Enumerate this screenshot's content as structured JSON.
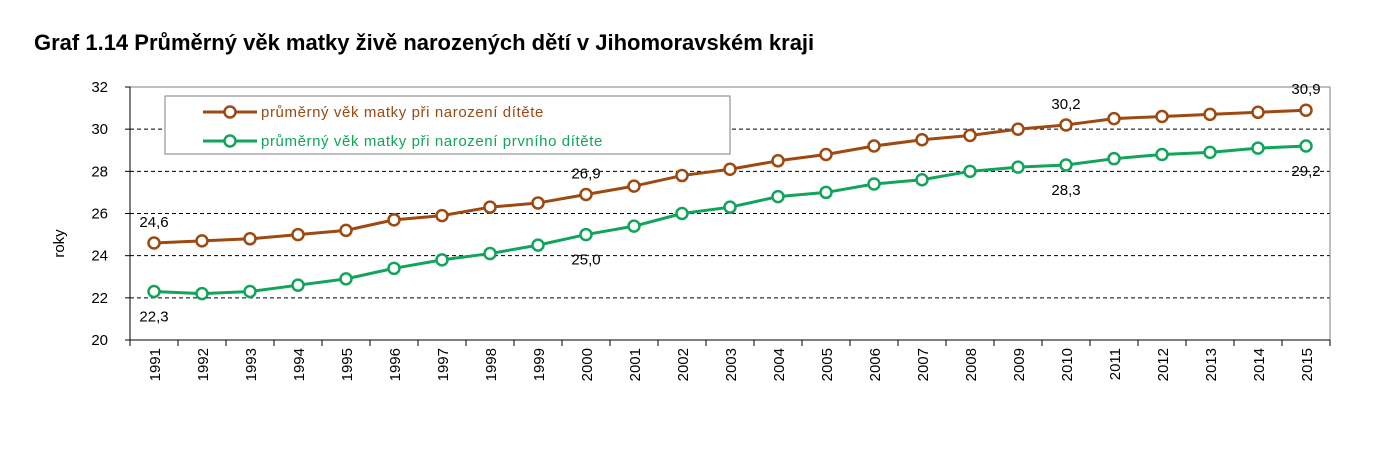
{
  "chart_data": {
    "type": "line",
    "title": "Graf 1.14 Průměrný věk matky živě narozených dětí v Jihomoravském kraji",
    "ylabel": "roky",
    "xlabel": "",
    "ylim": [
      20,
      32
    ],
    "yticks": [
      20,
      22,
      24,
      26,
      28,
      30,
      32
    ],
    "grid": "horizontal dashed",
    "legend_position": "top-left",
    "categories": [
      "1991",
      "1992",
      "1993",
      "1994",
      "1995",
      "1996",
      "1997",
      "1998",
      "1999",
      "2000",
      "2001",
      "2002",
      "2003",
      "2004",
      "2005",
      "2006",
      "2007",
      "2008",
      "2009",
      "2010",
      "2011",
      "2012",
      "2013",
      "2014",
      "2015"
    ],
    "series": [
      {
        "name": "průměrný věk matky při narození dítěte",
        "color": "#9c4a12",
        "values": [
          24.6,
          24.7,
          24.8,
          25.0,
          25.2,
          25.7,
          25.9,
          26.3,
          26.5,
          26.9,
          27.3,
          27.8,
          28.1,
          28.5,
          28.8,
          29.2,
          29.5,
          29.7,
          30.0,
          30.2,
          30.5,
          30.6,
          30.7,
          30.8,
          30.9
        ]
      },
      {
        "name": "průměrný věk matky při narození prvního dítěte",
        "color": "#12a45a",
        "values": [
          22.3,
          22.2,
          22.3,
          22.6,
          22.9,
          23.4,
          23.8,
          24.1,
          24.5,
          25.0,
          25.4,
          26.0,
          26.3,
          26.8,
          27.0,
          27.4,
          27.6,
          28.0,
          28.2,
          28.3,
          28.6,
          28.8,
          28.9,
          29.1,
          29.2
        ]
      }
    ],
    "annotations": [
      {
        "series": 0,
        "index": 0,
        "text": "24,6",
        "place": "above"
      },
      {
        "series": 0,
        "index": 9,
        "text": "26,9",
        "place": "above"
      },
      {
        "series": 0,
        "index": 19,
        "text": "30,2",
        "place": "above"
      },
      {
        "series": 0,
        "index": 24,
        "text": "30,9",
        "place": "above"
      },
      {
        "series": 1,
        "index": 0,
        "text": "22,3",
        "place": "below"
      },
      {
        "series": 1,
        "index": 9,
        "text": "25,0",
        "place": "below"
      },
      {
        "series": 1,
        "index": 19,
        "text": "28,3",
        "place": "below"
      },
      {
        "series": 1,
        "index": 24,
        "text": "29,2",
        "place": "below"
      }
    ]
  }
}
